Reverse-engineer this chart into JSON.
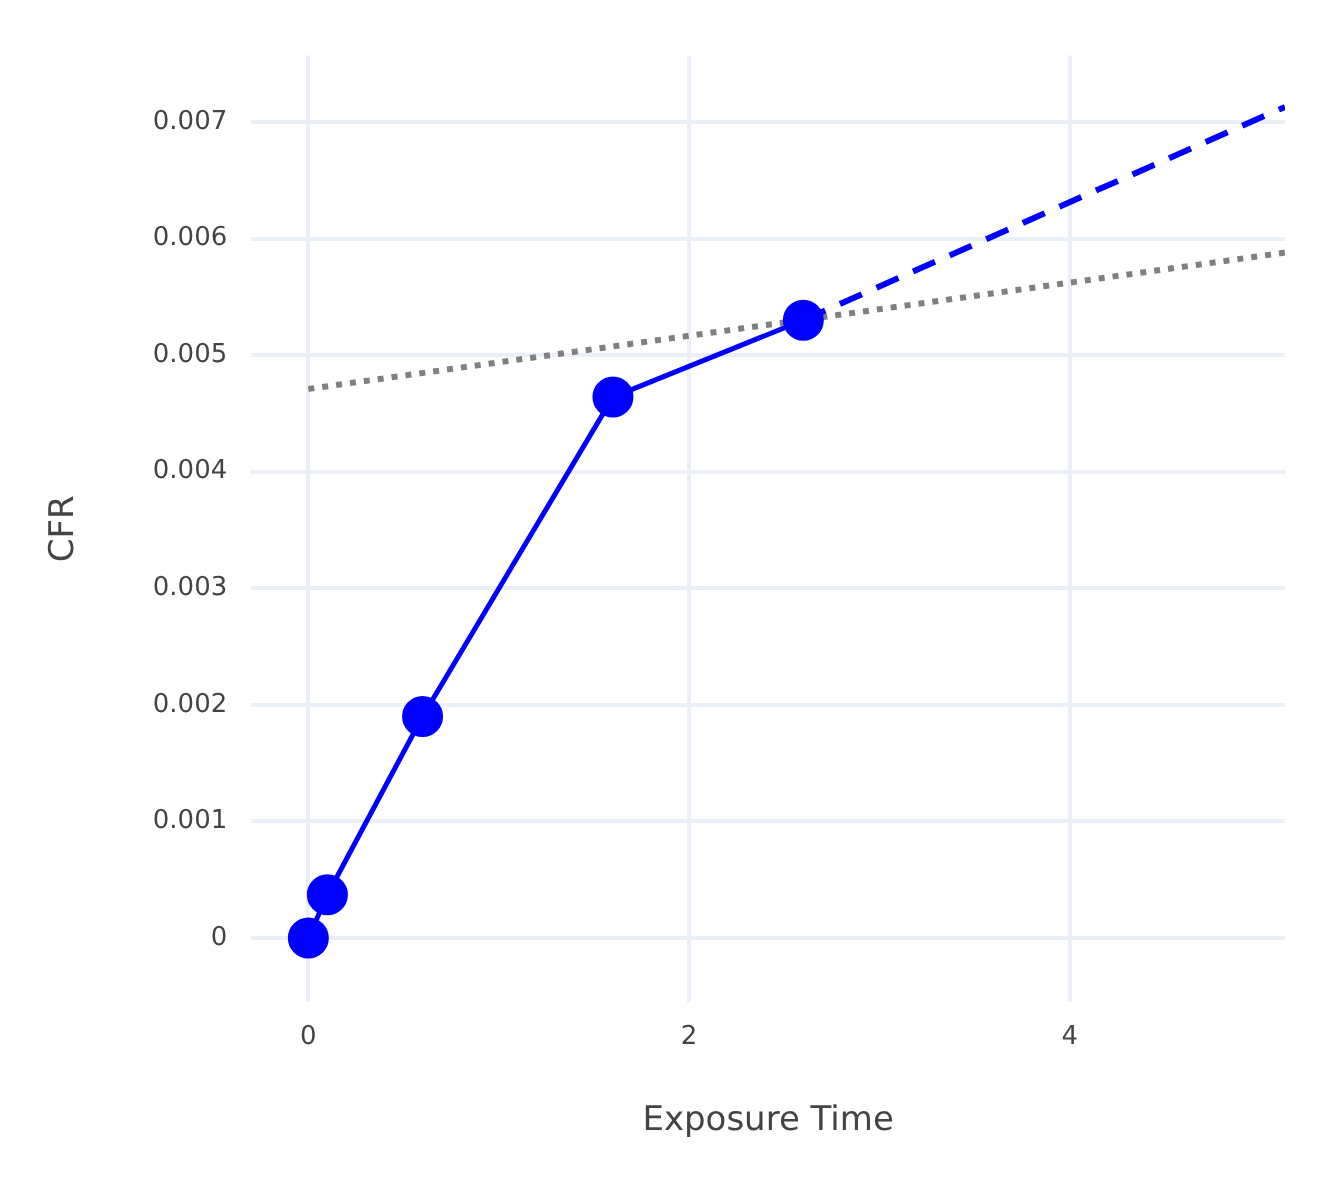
{
  "chart_data": {
    "type": "line",
    "xlabel": "Exposure Time",
    "ylabel": "CFR",
    "xlim": [
      -0.3,
      5.13
    ],
    "xticks": [
      0,
      2,
      4
    ],
    "ylim": [
      -0.00055,
      0.00757
    ],
    "yticks": [
      0,
      0.001,
      0.002,
      0.003,
      0.004,
      0.005,
      0.006,
      0.007
    ],
    "grid": true,
    "legend": false,
    "series": [
      {
        "color": "#0000ff",
        "x": [
          0,
          0.1,
          0.6,
          1.6,
          2.6
        ],
        "values": [
          0,
          0.00037,
          0.0019,
          0.00464,
          0.0053
        ],
        "marker": "circle",
        "line_style": "solid"
      },
      {
        "color": "#0000ff",
        "x": [
          2.6,
          5.13
        ],
        "values": [
          0.0053,
          0.00713
        ],
        "marker": "none",
        "line_style": "dashed"
      },
      {
        "color": "#808080",
        "x": [
          0,
          5.13
        ],
        "values": [
          0.00471,
          0.00588
        ],
        "marker": "none",
        "line_style": "dotted"
      }
    ]
  }
}
